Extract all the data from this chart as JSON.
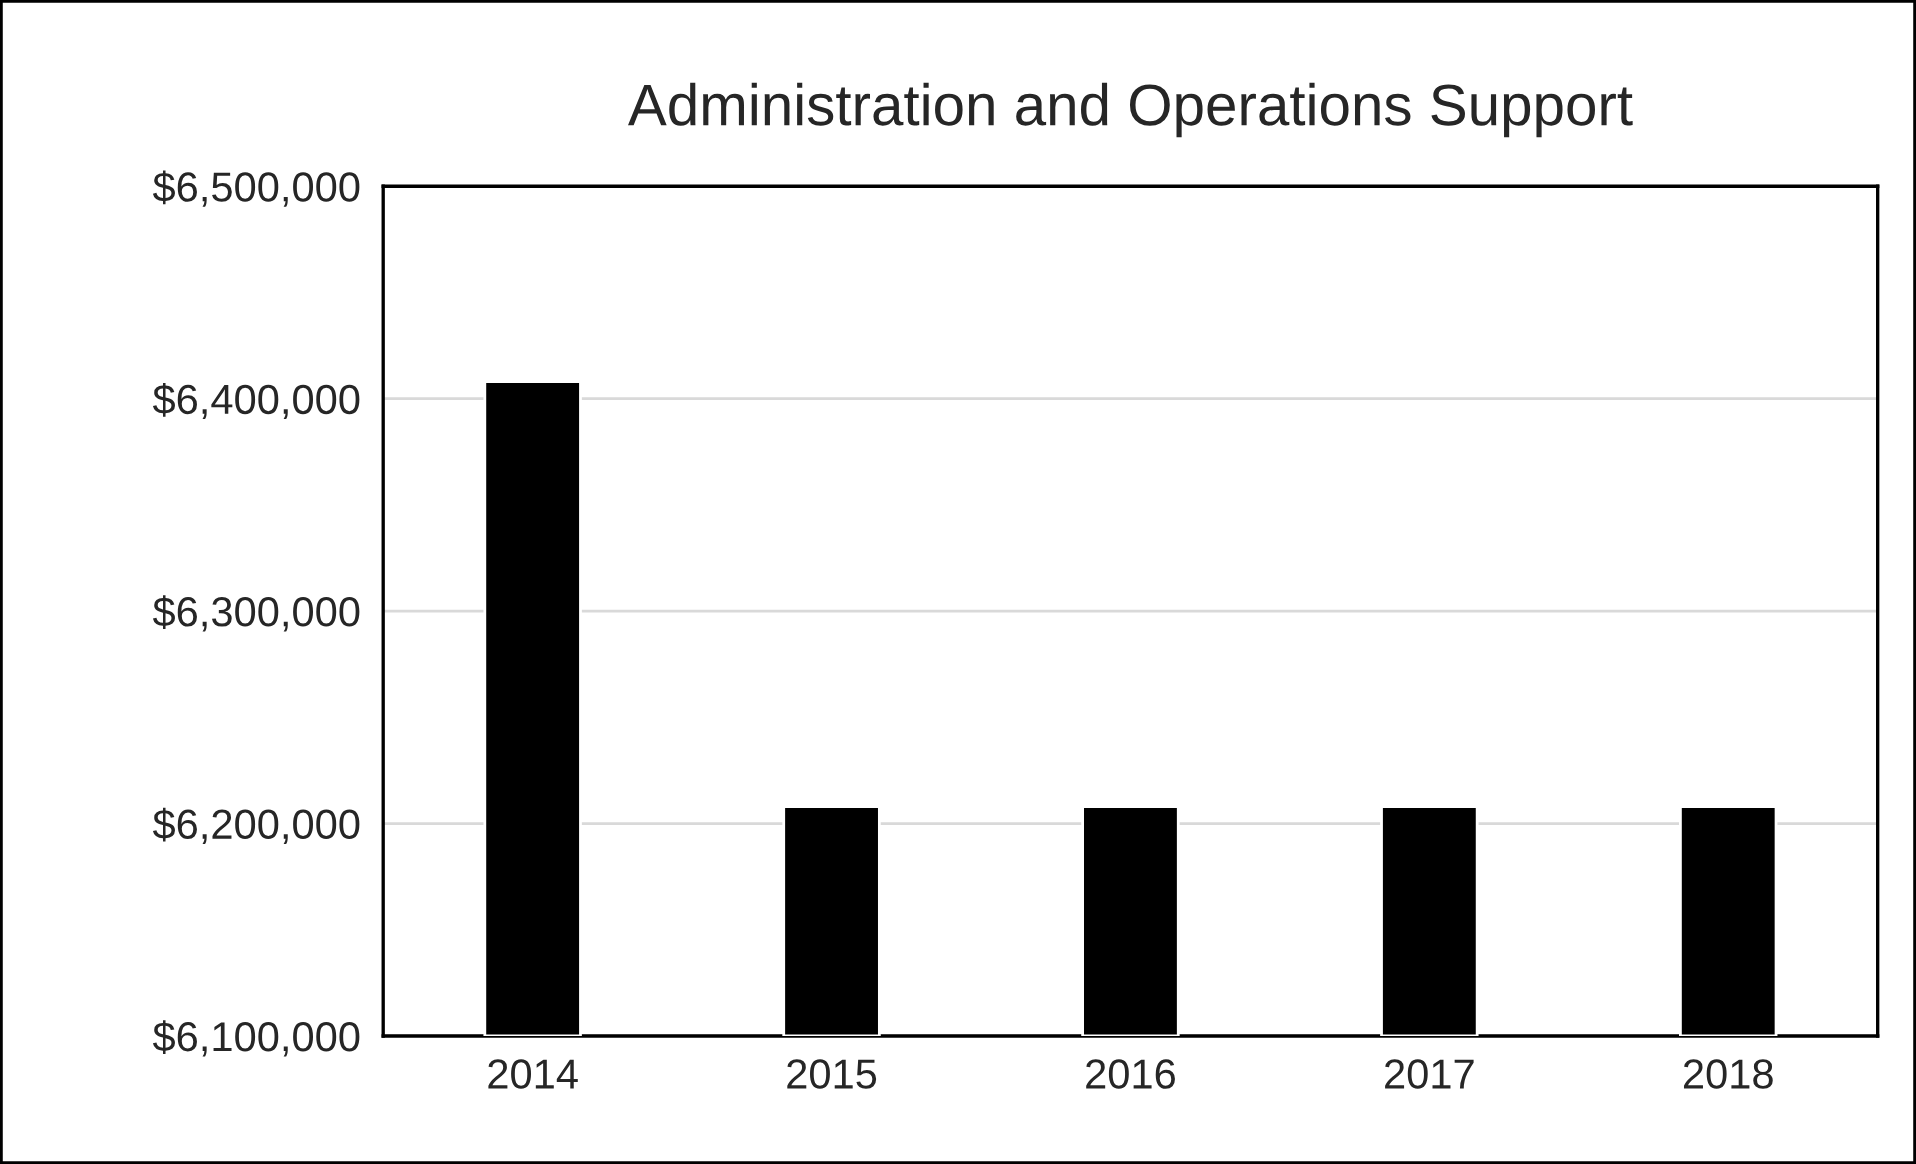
{
  "chart_data": {
    "type": "bar",
    "title": "Administration and Operations Support",
    "categories": [
      "2014",
      "2015",
      "2016",
      "2017",
      "2018"
    ],
    "values": [
      6408000,
      6208000,
      6208000,
      6208000,
      6208000
    ],
    "color": "#000000",
    "ylim": [
      6100000,
      6500000
    ],
    "yticks": [
      {
        "value": 6100000,
        "label": "$6,100,000"
      },
      {
        "value": 6200000,
        "label": "$6,200,000"
      },
      {
        "value": 6300000,
        "label": "$6,300,000"
      },
      {
        "value": 6400000,
        "label": "$6,400,000"
      },
      {
        "value": 6500000,
        "label": "$6,500,000"
      }
    ],
    "grid": "y",
    "legend": false
  }
}
